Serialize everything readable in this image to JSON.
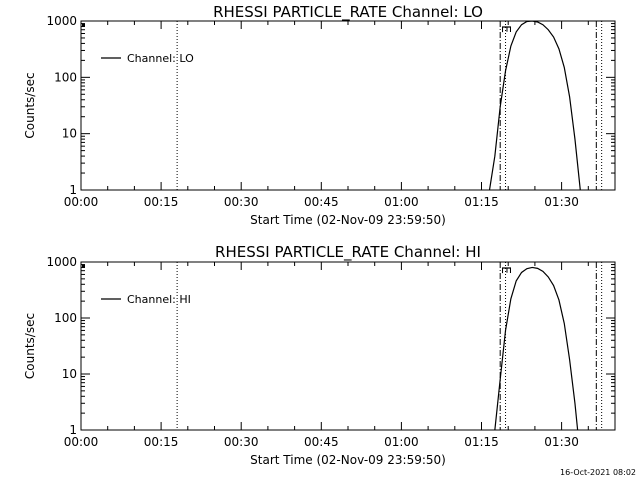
{
  "timestamp": "16-Oct-2021 08:02",
  "colors": {
    "background": "#ffffff",
    "foreground": "#000000"
  },
  "chart_data": [
    {
      "type": "line",
      "title": "RHESSI PARTICLE_RATE Channel: LO",
      "xlabel": "Start Time (02-Nov-09 23:59:50)",
      "ylabel": "Counts/sec",
      "y_scale": "log",
      "ylim": [
        1,
        1000
      ],
      "xlim_minutes": [
        0,
        100
      ],
      "x_ticks": [
        "00:00",
        "00:15",
        "00:30",
        "00:45",
        "01:00",
        "01:15",
        "01:30"
      ],
      "y_ticks": [
        "1",
        "10",
        "100",
        "1000"
      ],
      "legend": {
        "placement": "top-left",
        "entries": [
          "Channel: LO"
        ]
      },
      "flag_label": "E",
      "vlines": [
        {
          "x": 18,
          "style": "dotted"
        },
        {
          "x": 78.5,
          "style": "dash-dot"
        },
        {
          "x": 79.5,
          "style": "dotted"
        },
        {
          "x": 96.5,
          "style": "dash-dot"
        },
        {
          "x": 97.5,
          "style": "dotted"
        }
      ],
      "series": [
        {
          "x": [
            76.5,
            77.5,
            78.5,
            79.5,
            80.5,
            81.5,
            82.5,
            83.5,
            84.5,
            85.5,
            86.5,
            87.5,
            88.5,
            89.5,
            90.5,
            91.5,
            92.5,
            93.5
          ],
          "y": [
            1,
            4,
            30,
            130,
            360,
            640,
            860,
            980,
            1000,
            960,
            860,
            700,
            520,
            320,
            150,
            45,
            8,
            1
          ]
        }
      ]
    },
    {
      "type": "line",
      "title": "RHESSI PARTICLE_RATE Channel: HI",
      "xlabel": "Start Time (02-Nov-09 23:59:50)",
      "ylabel": "Counts/sec",
      "y_scale": "log",
      "ylim": [
        1,
        1000
      ],
      "xlim_minutes": [
        0,
        100
      ],
      "x_ticks": [
        "00:00",
        "00:15",
        "00:30",
        "00:45",
        "01:00",
        "01:15",
        "01:30"
      ],
      "y_ticks": [
        "1",
        "10",
        "100",
        "1000"
      ],
      "legend": {
        "placement": "top-left",
        "entries": [
          "Channel: HI"
        ]
      },
      "flag_label": "E",
      "vlines": [
        {
          "x": 18,
          "style": "dotted"
        },
        {
          "x": 78.5,
          "style": "dash-dot"
        },
        {
          "x": 79.5,
          "style": "dotted"
        },
        {
          "x": 96.5,
          "style": "dash-dot"
        },
        {
          "x": 97.5,
          "style": "dotted"
        }
      ],
      "series": [
        {
          "x": [
            77.5,
            78.5,
            79.5,
            80.5,
            81.5,
            82.5,
            83.5,
            84.5,
            85.5,
            86.5,
            87.5,
            88.5,
            89.5,
            90.5,
            91.5,
            92.5,
            93
          ],
          "y": [
            1,
            8,
            60,
            220,
            460,
            650,
            760,
            800,
            770,
            680,
            540,
            380,
            210,
            80,
            18,
            3,
            1
          ]
        }
      ]
    }
  ]
}
